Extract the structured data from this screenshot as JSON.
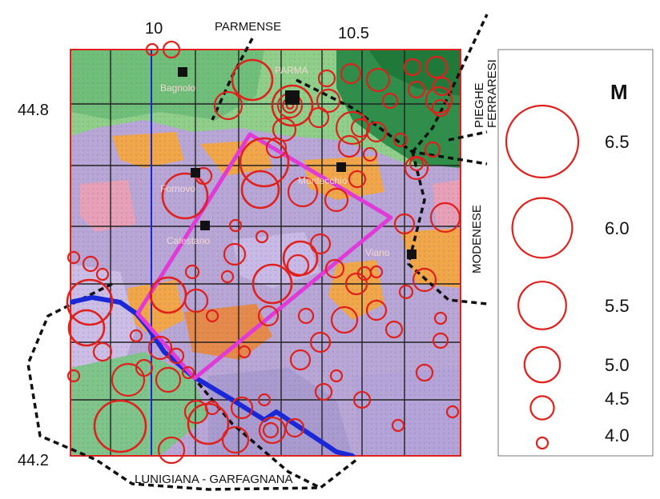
{
  "colors": {
    "quake_circle": "#e0201c",
    "survey_box": "#e03ad8",
    "river": "#1a28d8",
    "meridian": "#1a28d8",
    "map_border": "#e0201c",
    "boundary": "#111111",
    "map_base_green": "#6fbf7a",
    "map_base_purple": "#b8a6d6",
    "map_base_orange": "#f2a64a",
    "map_base_darkgreen": "#2f8f4a"
  },
  "axes": {
    "lon_ticks": [
      "10",
      "10.5"
    ],
    "lat_ticks": [
      "44.8",
      "44.2"
    ]
  },
  "zones": {
    "north": "PARMENSE",
    "northeast": "PIEGHE FERRARESI",
    "east": "MODENESE",
    "south": "LUNIGIANA - GARFAGNANA"
  },
  "cities": [
    {
      "name": "Bagnolo"
    },
    {
      "name": "PARMA"
    },
    {
      "name": "Fornovo"
    },
    {
      "name": "Montecchio"
    },
    {
      "name": "Calestano"
    },
    {
      "name": "Viano"
    }
  ],
  "legend": {
    "title": "M",
    "items": [
      {
        "label": "6.5",
        "magnitude": 6.5
      },
      {
        "label": "6.0",
        "magnitude": 6.0
      },
      {
        "label": "5.5",
        "magnitude": 5.5
      },
      {
        "label": "5.0",
        "magnitude": 5.0
      },
      {
        "label": "4.5",
        "magnitude": 4.5
      },
      {
        "label": "4.0",
        "magnitude": 4.0
      }
    ]
  }
}
